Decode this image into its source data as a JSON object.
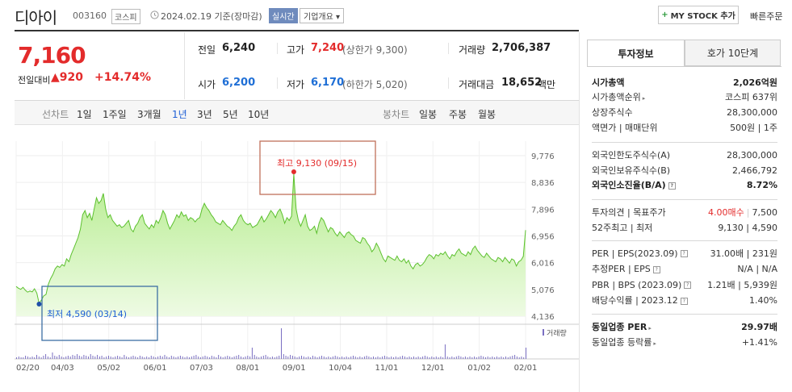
{
  "header": {
    "stock_name": "디아이",
    "stock_code": "003160",
    "market": "코스피",
    "date": "2024.02.19 기준(장마감)",
    "realtime_label": "실시간",
    "company_label": "기업개요 ▾",
    "mystock_label": "MY STOCK 추가",
    "quick_order_label": "빠른주문"
  },
  "price": {
    "current": "7,160",
    "change_label": "전일대비",
    "change_value": "▲920",
    "change_pct": "+14.74%"
  },
  "quote": {
    "prev_label": "전일",
    "prev_value": "6,240",
    "high_label": "고가",
    "high_value": "7,240",
    "high_sub": "(상한가 9,300)",
    "volume_label": "거래량",
    "volume_value": "2,706,387",
    "open_label": "시가",
    "open_value": "6,200",
    "low_label": "저가",
    "low_value": "6,170",
    "low_sub": "(하한가 5,020)",
    "amount_label": "거래대금",
    "amount_value": "18,652",
    "amount_unit": "백만"
  },
  "tabs": {
    "line_label": "선차트",
    "line_periods": [
      "1일",
      "1주일",
      "3개월",
      "1년",
      "3년",
      "5년",
      "10년"
    ],
    "active_period": "1년",
    "candle_label": "봉차트",
    "candle_periods": [
      "일봉",
      "주봉",
      "월봉"
    ]
  },
  "chart_data": {
    "type": "area",
    "title": "",
    "y_ticks": [
      "9,776",
      "8,836",
      "7,896",
      "6,956",
      "6,016",
      "5,076",
      "4,136"
    ],
    "y_tick_values": [
      9776,
      8836,
      7896,
      6956,
      6016,
      5076,
      4136
    ],
    "ylim": [
      4136,
      9776
    ],
    "x_ticks": [
      "02/20",
      "04/03",
      "05/02",
      "06/01",
      "07/03",
      "08/01",
      "09/01",
      "10/04",
      "11/01",
      "12/01",
      "01/02",
      "02/01"
    ],
    "high_annotation": "최고 9,130 (09/15)",
    "low_annotation": "최저 4,590 (03/14)",
    "high_value": 9130,
    "low_value": 4590,
    "volume_legend": "거래량",
    "area_color": "#b6ec8f",
    "line_color": "#5cc02e",
    "series": [
      {
        "values": [
          5180,
          5120,
          5080,
          5150,
          5050,
          4980,
          5020,
          4990,
          5100,
          4950,
          4590,
          4700,
          4850,
          4900,
          5250,
          5450,
          5600,
          5800,
          5900,
          5850,
          5950,
          5900,
          6150,
          6050,
          6300,
          6500,
          6700,
          6900,
          7200,
          7700,
          7850,
          7600,
          7750,
          7500,
          7900,
          8300,
          8100,
          8200,
          8450,
          7900,
          7600,
          7700,
          7500,
          7400,
          7300,
          7350,
          7250,
          7300,
          7400,
          7500,
          7200,
          7100,
          7300,
          7400,
          7600,
          7700,
          7400,
          7300,
          7200,
          7350,
          7250,
          7500,
          7400,
          7600,
          7850,
          7700,
          7400,
          7200,
          7350,
          7500,
          7700,
          7600,
          7800,
          7650,
          7700,
          7500,
          7600,
          7550,
          7450,
          7550,
          7600,
          7900,
          8100,
          7950,
          7850,
          7700,
          7600,
          7450,
          7400,
          7350,
          7500,
          7400,
          7300,
          7250,
          7150,
          7300,
          7400,
          7600,
          7700,
          7500,
          7400,
          7350,
          7400,
          7250,
          7300,
          7350,
          7500,
          7650,
          7450,
          7550,
          7700,
          7850,
          7750,
          7600,
          7800,
          7900,
          7700,
          7400,
          7600,
          7500,
          7650,
          9130,
          7900,
          7500,
          7300,
          7500,
          7700,
          7300,
          7150,
          7200,
          7300,
          7050,
          7400,
          7600,
          7500,
          7300,
          7100,
          7250,
          7200,
          7050,
          6950,
          7100,
          7000,
          6900,
          7050,
          7100,
          7000,
          6950,
          6800,
          6750,
          6700,
          6900,
          6850,
          6700,
          6600,
          6400,
          6500,
          6700,
          6550,
          6350,
          6150,
          6050,
          6250,
          6200,
          6150,
          6100,
          6250,
          6100,
          6050,
          6150,
          6000,
          6100,
          5900,
          5800,
          5950,
          6000,
          5900,
          5950,
          6050,
          6200,
          6300,
          6250,
          6150,
          6300,
          6250,
          6350,
          6300,
          6400,
          6250,
          6150,
          6300,
          6250,
          6400,
          6500,
          6350,
          6300,
          6250,
          6400,
          6300,
          6500,
          6600,
          6450,
          6350,
          6250,
          6200,
          6350,
          6250,
          6150,
          6100,
          6050,
          6200,
          6150,
          6050,
          6200,
          6100,
          6000,
          6150,
          6100,
          5900,
          6050,
          6100,
          6240,
          7160
        ]
      }
    ],
    "volume_values": [
      2,
      3,
      2,
      2,
      4,
      3,
      2,
      3,
      2,
      5,
      3,
      2,
      4,
      6,
      3,
      2,
      8,
      4,
      3,
      5,
      3,
      2,
      3,
      4,
      3,
      5,
      4,
      6,
      4,
      3,
      5,
      4,
      3,
      6,
      4,
      3,
      5,
      3,
      4,
      2,
      3,
      4,
      3,
      2,
      3,
      4,
      3,
      2,
      5,
      3,
      2,
      3,
      4,
      3,
      2,
      4,
      3,
      2,
      3,
      2,
      4,
      3,
      2,
      3,
      4,
      3,
      5,
      3,
      2,
      4,
      3,
      2,
      3,
      4,
      3,
      2,
      3,
      2,
      3,
      4,
      5,
      3,
      2,
      3,
      4,
      3,
      2,
      4,
      3,
      2,
      5,
      3,
      2,
      3,
      4,
      3,
      2,
      3,
      4,
      5,
      3,
      2,
      3,
      4,
      3,
      14,
      5,
      3,
      2,
      3,
      4,
      5,
      3,
      2,
      3,
      2,
      3,
      4,
      38,
      6,
      4,
      3,
      5,
      4,
      3,
      2,
      3,
      4,
      3,
      2,
      3,
      2,
      4,
      3,
      2,
      3,
      4,
      3,
      2,
      3,
      2,
      3,
      4,
      3,
      2,
      3,
      2,
      3,
      2,
      3,
      4,
      3,
      2,
      3,
      2,
      3,
      4,
      3,
      2,
      3,
      2,
      3,
      2,
      3,
      4,
      3,
      2,
      3,
      2,
      3,
      2,
      3,
      4,
      3,
      2,
      3,
      2,
      3,
      2,
      3,
      2,
      3,
      4,
      3,
      2,
      3,
      2,
      3,
      2,
      3,
      2,
      18,
      3,
      2,
      3,
      2,
      3,
      4,
      3,
      2,
      3,
      2,
      3,
      2,
      3,
      2,
      3,
      4,
      3,
      2,
      3,
      2,
      3,
      2,
      3,
      2,
      3,
      2,
      3,
      2,
      3,
      4,
      5,
      3,
      2,
      3,
      2,
      14
    ]
  },
  "invest": {
    "tab_active": "투자정보",
    "tab_other": "호가 10단계",
    "rows1": [
      {
        "label": "시가총액",
        "value": "2,026억원",
        "bold": true
      },
      {
        "label": "시가총액순위",
        "value": "코스피 637위",
        "tri": true
      },
      {
        "label": "상장주식수",
        "value": "28,300,000"
      },
      {
        "label": "액면가 | 매매단위",
        "value": "500원 | 1주"
      }
    ],
    "rows2": [
      {
        "label": "외국인한도주식수(A)",
        "value": "28,300,000"
      },
      {
        "label": "외국인보유주식수(B)",
        "value": "2,466,792"
      },
      {
        "label": "외국인소진율(B/A)",
        "value": "8.72%",
        "bold": true,
        "icon": true
      }
    ],
    "rows3": [
      {
        "label": "투자의견 | 목표주가",
        "value_red": "4.00매수",
        "value": "7,500"
      },
      {
        "label": "52주최고 | 최저",
        "value": "9,130 | 4,590"
      }
    ],
    "rows4": [
      {
        "label": "PER | EPS(2023.09)",
        "value": "31.00배 | 231원"
      },
      {
        "label": "추정PER | EPS",
        "value": "N/A | N/A"
      },
      {
        "label": "PBR | BPS (2023.09)",
        "value": "1.21배 | 5,939원"
      },
      {
        "label": "배당수익률 | 2023.12",
        "value": "1.40%"
      }
    ],
    "rows5": [
      {
        "label": "동일업종 PER",
        "value": "29.97배",
        "bold": true
      },
      {
        "label": "동일업종 등락률",
        "value": "+1.41%",
        "red": true
      }
    ]
  }
}
